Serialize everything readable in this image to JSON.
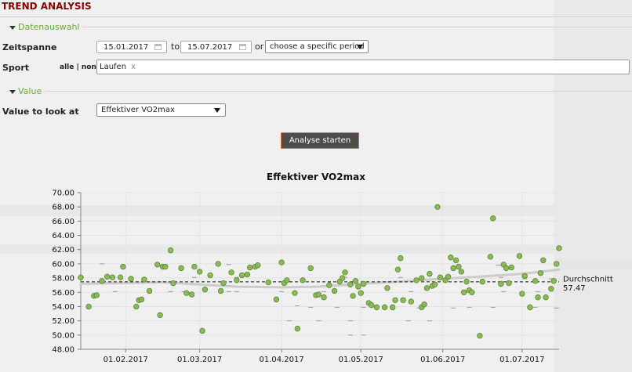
{
  "page": {
    "title": "TREND ANALYSIS"
  },
  "data_selection": {
    "section_label": "Datenauswahl",
    "period_label": "Zeitspanne",
    "date_from": "15.01.2017",
    "to_label": "to",
    "date_to": "15.07.2017",
    "or_label": "or",
    "period_select": "choose a specific period",
    "sport_label": "Sport",
    "all_none": "alle | none",
    "sport_tag": "Laufen",
    "sport_tag_remove": "x"
  },
  "value_section": {
    "section_label": "Value",
    "value_label": "Value to look at",
    "value_select": "Effektiver VO2max"
  },
  "actions": {
    "analyze_button": "Analyse starten"
  },
  "colors": {
    "title": "#8b0000",
    "section": "#6ca93a",
    "point": "#8cb85a",
    "point_stroke": "#5b8a32",
    "button_bg": "#4d4d4d",
    "button_border": "#e07040",
    "trend": "#cccccc"
  },
  "chart_data": {
    "type": "scatter",
    "title": "Effektiver VO2max",
    "xlabel": "",
    "ylabel": "",
    "ylim": [
      48,
      70
    ],
    "y_ticks": [
      "48.00",
      "50.00",
      "52.00",
      "54.00",
      "56.00",
      "58.00",
      "60.00",
      "62.00",
      "64.00",
      "66.00",
      "68.00",
      "70.00"
    ],
    "x_range": [
      "2017-01-15",
      "2017-07-15"
    ],
    "x_ticks": [
      {
        "date": "2017-02-01",
        "label": "01.02.2017"
      },
      {
        "date": "2017-03-01",
        "label": "01.03.2017"
      },
      {
        "date": "2017-04-01",
        "label": "01.04.2017"
      },
      {
        "date": "2017-05-01",
        "label": "01.05.2017"
      },
      {
        "date": "2017-06-01",
        "label": "01.06.2017"
      },
      {
        "date": "2017-07-01",
        "label": "01.07.2017"
      }
    ],
    "grid": true,
    "average": {
      "label": "Durchschnitt",
      "value": 57.47
    },
    "trend": [
      {
        "x": "2017-01-15",
        "y": 57.2
      },
      {
        "x": "2017-02-15",
        "y": 57.4
      },
      {
        "x": "2017-03-15",
        "y": 56.8
      },
      {
        "x": "2017-04-01",
        "y": 56.7
      },
      {
        "x": "2017-04-15",
        "y": 56.8
      },
      {
        "x": "2017-05-01",
        "y": 57.2
      },
      {
        "x": "2017-05-15",
        "y": 57.5
      },
      {
        "x": "2017-06-01",
        "y": 57.9
      },
      {
        "x": "2017-06-15",
        "y": 58.2
      },
      {
        "x": "2017-07-01",
        "y": 58.6
      },
      {
        "x": "2017-07-15",
        "y": 59.2
      }
    ],
    "points": [
      {
        "x": "2017-01-15",
        "y": 58.1
      },
      {
        "x": "2017-01-18",
        "y": 54.0
      },
      {
        "x": "2017-01-20",
        "y": 55.5
      },
      {
        "x": "2017-01-21",
        "y": 55.6
      },
      {
        "x": "2017-01-23",
        "y": 57.6
      },
      {
        "x": "2017-01-25",
        "y": 58.2
      },
      {
        "x": "2017-01-27",
        "y": 58.1
      },
      {
        "x": "2017-01-30",
        "y": 58.1
      },
      {
        "x": "2017-01-31",
        "y": 59.6
      },
      {
        "x": "2017-02-03",
        "y": 57.9
      },
      {
        "x": "2017-02-05",
        "y": 54.0
      },
      {
        "x": "2017-02-06",
        "y": 54.9
      },
      {
        "x": "2017-02-07",
        "y": 55.0
      },
      {
        "x": "2017-02-08",
        "y": 57.8
      },
      {
        "x": "2017-02-10",
        "y": 56.2
      },
      {
        "x": "2017-02-13",
        "y": 59.9
      },
      {
        "x": "2017-02-14",
        "y": 52.8
      },
      {
        "x": "2017-02-15",
        "y": 59.6
      },
      {
        "x": "2017-02-16",
        "y": 59.6
      },
      {
        "x": "2017-02-18",
        "y": 61.9
      },
      {
        "x": "2017-02-19",
        "y": 57.3
      },
      {
        "x": "2017-02-22",
        "y": 59.4
      },
      {
        "x": "2017-02-24",
        "y": 55.9
      },
      {
        "x": "2017-02-26",
        "y": 55.7
      },
      {
        "x": "2017-02-27",
        "y": 59.6
      },
      {
        "x": "2017-03-01",
        "y": 58.9
      },
      {
        "x": "2017-03-02",
        "y": 50.6
      },
      {
        "x": "2017-03-03",
        "y": 56.4
      },
      {
        "x": "2017-03-05",
        "y": 58.4
      },
      {
        "x": "2017-03-08",
        "y": 60.0
      },
      {
        "x": "2017-03-09",
        "y": 56.2
      },
      {
        "x": "2017-03-10",
        "y": 57.3
      },
      {
        "x": "2017-03-13",
        "y": 58.8
      },
      {
        "x": "2017-03-15",
        "y": 57.7
      },
      {
        "x": "2017-03-17",
        "y": 58.4
      },
      {
        "x": "2017-03-19",
        "y": 58.5
      },
      {
        "x": "2017-03-20",
        "y": 59.5
      },
      {
        "x": "2017-03-22",
        "y": 59.6
      },
      {
        "x": "2017-03-23",
        "y": 59.8
      },
      {
        "x": "2017-03-27",
        "y": 57.4
      },
      {
        "x": "2017-03-30",
        "y": 55.0
      },
      {
        "x": "2017-04-01",
        "y": 60.2
      },
      {
        "x": "2017-04-02",
        "y": 57.3
      },
      {
        "x": "2017-04-03",
        "y": 57.7
      },
      {
        "x": "2017-04-06",
        "y": 55.9
      },
      {
        "x": "2017-04-07",
        "y": 50.9
      },
      {
        "x": "2017-04-09",
        "y": 57.7
      },
      {
        "x": "2017-04-12",
        "y": 59.4
      },
      {
        "x": "2017-04-14",
        "y": 55.6
      },
      {
        "x": "2017-04-15",
        "y": 55.7
      },
      {
        "x": "2017-04-17",
        "y": 55.3
      },
      {
        "x": "2017-04-19",
        "y": 57.0
      },
      {
        "x": "2017-04-21",
        "y": 56.2
      },
      {
        "x": "2017-04-23",
        "y": 57.5
      },
      {
        "x": "2017-04-24",
        "y": 58.0
      },
      {
        "x": "2017-04-25",
        "y": 58.8
      },
      {
        "x": "2017-04-27",
        "y": 57.1
      },
      {
        "x": "2017-04-28",
        "y": 55.5
      },
      {
        "x": "2017-04-29",
        "y": 57.6
      },
      {
        "x": "2017-04-30",
        "y": 56.8
      },
      {
        "x": "2017-05-01",
        "y": 55.9
      },
      {
        "x": "2017-05-02",
        "y": 57.2
      },
      {
        "x": "2017-05-04",
        "y": 54.5
      },
      {
        "x": "2017-05-05",
        "y": 54.2
      },
      {
        "x": "2017-05-07",
        "y": 53.9
      },
      {
        "x": "2017-05-10",
        "y": 53.9
      },
      {
        "x": "2017-05-11",
        "y": 56.6
      },
      {
        "x": "2017-05-13",
        "y": 53.9
      },
      {
        "x": "2017-05-14",
        "y": 54.9
      },
      {
        "x": "2017-05-15",
        "y": 59.2
      },
      {
        "x": "2017-05-16",
        "y": 60.8
      },
      {
        "x": "2017-05-17",
        "y": 54.9
      },
      {
        "x": "2017-05-20",
        "y": 54.7
      },
      {
        "x": "2017-05-22",
        "y": 57.7
      },
      {
        "x": "2017-05-24",
        "y": 58.0
      },
      {
        "x": "2017-05-24",
        "y": 53.9
      },
      {
        "x": "2017-05-25",
        "y": 54.3
      },
      {
        "x": "2017-05-26",
        "y": 56.6
      },
      {
        "x": "2017-05-27",
        "y": 58.6
      },
      {
        "x": "2017-05-28",
        "y": 56.9
      },
      {
        "x": "2017-05-29",
        "y": 57.1
      },
      {
        "x": "2017-05-30",
        "y": 68.0
      },
      {
        "x": "2017-05-31",
        "y": 58.1
      },
      {
        "x": "2017-06-02",
        "y": 57.7
      },
      {
        "x": "2017-06-03",
        "y": 58.2
      },
      {
        "x": "2017-06-04",
        "y": 60.9
      },
      {
        "x": "2017-06-05",
        "y": 59.4
      },
      {
        "x": "2017-06-06",
        "y": 60.5
      },
      {
        "x": "2017-06-07",
        "y": 59.6
      },
      {
        "x": "2017-06-08",
        "y": 58.9
      },
      {
        "x": "2017-06-09",
        "y": 56.0
      },
      {
        "x": "2017-06-10",
        "y": 57.5
      },
      {
        "x": "2017-06-11",
        "y": 56.3
      },
      {
        "x": "2017-06-12",
        "y": 56.0
      },
      {
        "x": "2017-06-15",
        "y": 49.9
      },
      {
        "x": "2017-06-16",
        "y": 57.5
      },
      {
        "x": "2017-06-19",
        "y": 61.0
      },
      {
        "x": "2017-06-20",
        "y": 66.4
      },
      {
        "x": "2017-06-23",
        "y": 57.2
      },
      {
        "x": "2017-06-24",
        "y": 59.9
      },
      {
        "x": "2017-06-25",
        "y": 59.4
      },
      {
        "x": "2017-06-26",
        "y": 57.3
      },
      {
        "x": "2017-06-27",
        "y": 59.5
      },
      {
        "x": "2017-06-30",
        "y": 61.1
      },
      {
        "x": "2017-07-01",
        "y": 55.8
      },
      {
        "x": "2017-07-02",
        "y": 58.3
      },
      {
        "x": "2017-07-04",
        "y": 53.9
      },
      {
        "x": "2017-07-06",
        "y": 57.6
      },
      {
        "x": "2017-07-07",
        "y": 55.3
      },
      {
        "x": "2017-07-08",
        "y": 58.7
      },
      {
        "x": "2017-07-09",
        "y": 60.5
      },
      {
        "x": "2017-07-10",
        "y": 55.3
      },
      {
        "x": "2017-07-12",
        "y": 56.5
      },
      {
        "x": "2017-07-13",
        "y": 57.6
      },
      {
        "x": "2017-07-14",
        "y": 60.0
      },
      {
        "x": "2017-07-15",
        "y": 62.2
      }
    ],
    "forecast_marks": [
      {
        "x": "2017-01-23",
        "y": 60.0
      },
      {
        "x": "2017-02-08",
        "y": 57.9
      },
      {
        "x": "2017-02-27",
        "y": 58.1
      },
      {
        "x": "2017-03-12",
        "y": 59.9
      },
      {
        "x": "2017-03-15",
        "y": 58.1
      },
      {
        "x": "2017-04-03",
        "y": 57.9
      },
      {
        "x": "2017-04-25",
        "y": 58.1
      },
      {
        "x": "2017-05-16",
        "y": 58.1
      },
      {
        "x": "2017-06-22",
        "y": 59.8
      },
      {
        "x": "2017-06-23",
        "y": 58.1
      },
      {
        "x": "2017-07-02",
        "y": 57.9
      },
      {
        "x": "2017-07-12",
        "y": 57.9
      },
      {
        "x": "2017-01-28",
        "y": 56.1
      },
      {
        "x": "2017-02-18",
        "y": 56.1
      },
      {
        "x": "2017-02-23",
        "y": 56.1
      },
      {
        "x": "2017-03-12",
        "y": 56.1
      },
      {
        "x": "2017-03-15",
        "y": 56.1
      },
      {
        "x": "2017-04-01",
        "y": 56.1
      },
      {
        "x": "2017-04-17",
        "y": 56.1
      },
      {
        "x": "2017-05-20",
        "y": 56.1
      },
      {
        "x": "2017-06-24",
        "y": 56.1
      },
      {
        "x": "2017-07-07",
        "y": 56.1
      },
      {
        "x": "2017-04-07",
        "y": 54.1
      },
      {
        "x": "2017-04-12",
        "y": 53.9
      },
      {
        "x": "2017-04-22",
        "y": 53.9
      },
      {
        "x": "2017-05-02",
        "y": 53.9
      },
      {
        "x": "2017-05-23",
        "y": 53.8
      },
      {
        "x": "2017-06-05",
        "y": 53.8
      },
      {
        "x": "2017-06-11",
        "y": 53.9
      },
      {
        "x": "2017-06-20",
        "y": 53.9
      },
      {
        "x": "2017-07-06",
        "y": 53.9
      },
      {
        "x": "2017-07-14",
        "y": 53.8
      },
      {
        "x": "2017-04-04",
        "y": 52.0
      },
      {
        "x": "2017-04-15",
        "y": 52.0
      },
      {
        "x": "2017-04-27",
        "y": 52.0
      },
      {
        "x": "2017-05-19",
        "y": 52.0
      },
      {
        "x": "2017-05-27",
        "y": 52.0
      },
      {
        "x": "2017-04-27",
        "y": 50.0
      },
      {
        "x": "2017-05-02",
        "y": 50.0
      }
    ]
  }
}
